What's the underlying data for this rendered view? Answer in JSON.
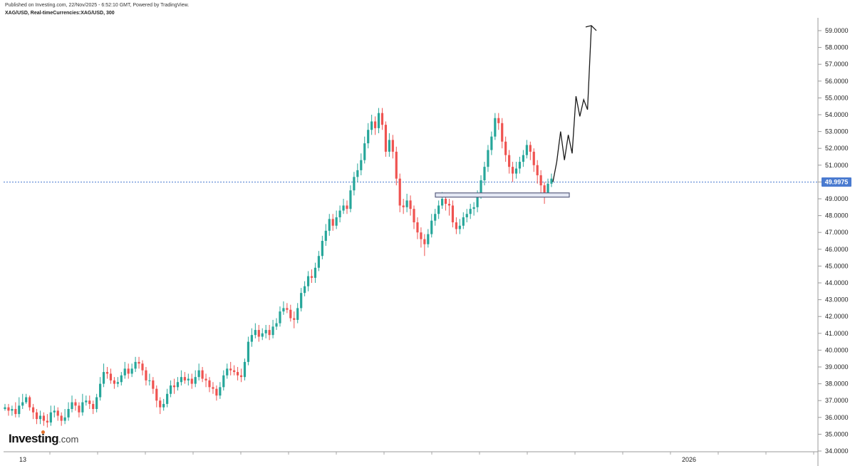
{
  "header": {
    "published": "Published on Investing.com, 22/Nov/2025 - 6:52:10 GMT, Powered by TradingView.",
    "symbol": "XAG/USD, Real-timeCurrencies:XAG/USD, 300"
  },
  "logo": {
    "brand": "Investing",
    "suffix": ".com"
  },
  "current_price": "49.9975",
  "colors": {
    "up": "#26a69a",
    "down": "#ef5350",
    "price_line": "#4a7bd0",
    "support_fill": "#e4e8f4"
  },
  "chart_data": {
    "type": "candlestick",
    "title": "",
    "ylim": [
      33.6,
      59.9
    ],
    "y_ticks": [
      "34.0000",
      "35.0000",
      "36.0000",
      "37.0000",
      "38.0000",
      "39.0000",
      "40.0000",
      "41.0000",
      "42.0000",
      "43.0000",
      "44.0000",
      "45.0000",
      "46.0000",
      "47.0000",
      "48.0000",
      "49.0000",
      "50.0000",
      "51.0000",
      "52.0000",
      "53.0000",
      "54.0000",
      "55.0000",
      "56.0000",
      "57.0000",
      "58.0000",
      "59.0000"
    ],
    "x_tick_labels": [
      "13",
      "2026"
    ],
    "closes": [
      36.6,
      36.4,
      36.5,
      36.2,
      36.7,
      36.9,
      37.2,
      36.6,
      36.3,
      35.9,
      36.1,
      35.8,
      35.7,
      36.3,
      36.4,
      36.1,
      35.8,
      36.0,
      36.5,
      36.9,
      36.7,
      36.3,
      36.9,
      37.0,
      36.8,
      36.5,
      37.2,
      38.0,
      38.7,
      38.6,
      38.2,
      38.0,
      38.1,
      38.5,
      38.9,
      38.6,
      38.9,
      39.3,
      39.2,
      38.8,
      38.2,
      38.2,
      37.7,
      37.0,
      36.6,
      36.8,
      37.4,
      37.9,
      37.8,
      38.1,
      38.4,
      38.2,
      38.3,
      38.0,
      38.4,
      38.8,
      38.3,
      38.2,
      37.8,
      37.7,
      37.3,
      37.8,
      38.5,
      38.9,
      38.8,
      38.7,
      38.5,
      38.4,
      39.3,
      40.5,
      40.9,
      41.2,
      40.8,
      41.0,
      41.2,
      40.9,
      41.4,
      41.6,
      42.3,
      42.5,
      42.4,
      41.9,
      41.8,
      42.5,
      43.4,
      43.8,
      44.4,
      44.3,
      44.9,
      45.6,
      46.5,
      47.1,
      47.8,
      47.4,
      47.9,
      48.3,
      48.6,
      48.4,
      49.5,
      50.3,
      50.7,
      51.3,
      52.3,
      53.1,
      53.6,
      53.2,
      54.1,
      53.4,
      51.8,
      52.5,
      51.8,
      50.2,
      48.6,
      48.5,
      48.9,
      48.4,
      47.6,
      47.0,
      46.6,
      46.3,
      46.9,
      47.7,
      48.1,
      48.6,
      49.0,
      48.7,
      48.6,
      47.6,
      47.2,
      47.4,
      47.9,
      48.1,
      48.4,
      48.5,
      49.2,
      50.1,
      50.9,
      51.9,
      52.7,
      53.8,
      53.5,
      52.4,
      51.6,
      50.9,
      50.5,
      50.8,
      51.2,
      51.6,
      52.2,
      51.8,
      51.0,
      50.4,
      49.8,
      49.3,
      49.9,
      50.2
    ],
    "highs": [
      36.8,
      36.8,
      36.7,
      36.9,
      37.2,
      37.4,
      37.4,
      37.3,
      36.8,
      36.5,
      36.4,
      36.3,
      36.2,
      36.7,
      36.7,
      36.6,
      36.3,
      36.5,
      36.9,
      37.3,
      37.1,
      36.9,
      37.4,
      37.3,
      37.3,
      37.0,
      37.4,
      38.4,
      39.2,
      39.0,
      38.9,
      38.4,
      38.4,
      38.7,
      39.3,
      39.2,
      39.2,
      39.6,
      39.6,
      39.4,
      39.0,
      38.6,
      38.4,
      37.9,
      37.2,
      37.1,
      37.7,
      38.2,
      38.3,
      38.4,
      38.8,
      38.7,
      38.6,
      38.6,
      38.8,
      39.2,
      39.0,
      38.6,
      38.4,
      38.1,
      37.9,
      38.1,
      38.8,
      39.2,
      39.3,
      39.1,
      39.0,
      38.9,
      39.5,
      40.8,
      41.3,
      41.6,
      41.5,
      41.3,
      41.5,
      41.5,
      41.8,
      41.9,
      42.6,
      42.9,
      42.8,
      42.7,
      42.3,
      42.8,
      43.7,
      44.1,
      44.7,
      44.8,
      45.2,
      45.9,
      46.8,
      47.5,
      48.1,
      48.1,
      48.3,
      48.6,
      49.0,
      48.9,
      49.8,
      50.6,
      51.1,
      51.7,
      52.7,
      53.5,
      54.0,
      53.9,
      54.4,
      54.4,
      53.6,
      52.9,
      52.8,
      52.1,
      50.5,
      49.0,
      49.3,
      49.2,
      48.6,
      47.9,
      47.3,
      46.9,
      47.2,
      48.1,
      48.4,
      48.9,
      49.4,
      49.3,
      49.0,
      48.9,
      47.9,
      47.8,
      48.2,
      48.4,
      48.7,
      48.8,
      49.5,
      50.4,
      51.2,
      52.2,
      53.0,
      54.1,
      54.1,
      53.8,
      52.7,
      51.9,
      51.2,
      51.2,
      51.5,
      51.9,
      52.5,
      52.4,
      52.0,
      51.3,
      50.7,
      50.0,
      50.2,
      50.5
    ],
    "lows": [
      36.4,
      36.1,
      36.1,
      36.0,
      36.0,
      36.5,
      36.8,
      36.4,
      35.9,
      35.6,
      35.6,
      35.5,
      35.4,
      35.5,
      36.0,
      35.8,
      35.5,
      35.6,
      35.8,
      36.3,
      36.4,
      36.0,
      36.1,
      36.7,
      36.5,
      36.2,
      36.3,
      37.0,
      37.8,
      38.3,
      38.0,
      37.7,
      37.8,
      37.9,
      38.3,
      38.3,
      38.4,
      38.7,
      38.9,
      38.5,
      37.9,
      37.9,
      37.4,
      36.6,
      36.2,
      36.4,
      36.6,
      37.2,
      37.4,
      37.6,
      37.9,
      38.0,
      37.9,
      37.7,
      37.8,
      38.2,
      38.1,
      37.8,
      37.5,
      37.4,
      37.0,
      37.1,
      37.6,
      38.3,
      38.5,
      38.5,
      38.2,
      38.1,
      38.2,
      39.1,
      40.2,
      40.7,
      40.5,
      40.6,
      40.7,
      40.6,
      40.7,
      41.2,
      41.4,
      42.1,
      42.2,
      41.7,
      41.3,
      41.6,
      42.3,
      43.2,
      43.5,
      44.0,
      44.0,
      44.7,
      45.4,
      46.2,
      46.8,
      47.1,
      47.2,
      47.6,
      48.1,
      48.1,
      48.2,
      49.2,
      50.0,
      50.4,
      51.1,
      52.0,
      52.8,
      52.8,
      52.9,
      53.1,
      51.5,
      51.5,
      51.4,
      49.8,
      48.2,
      48.1,
      48.2,
      48.0,
      47.2,
      46.6,
      46.1,
      45.6,
      46.1,
      46.7,
      47.4,
      47.8,
      48.4,
      48.3,
      48.0,
      47.3,
      46.9,
      46.9,
      47.2,
      47.6,
      47.8,
      48.0,
      48.2,
      49.0,
      49.8,
      50.6,
      51.6,
      52.5,
      53.1,
      52.0,
      51.2,
      50.5,
      50.0,
      50.2,
      50.5,
      50.9,
      51.4,
      51.3,
      50.6,
      49.9,
      49.3,
      48.7,
      49.1,
      49.7
    ],
    "support_zone": [
      49.1,
      49.35
    ],
    "projection": [
      50.0,
      51.2,
      53.0,
      51.3,
      52.8,
      51.7,
      55.1,
      53.9,
      54.9,
      54.3,
      59.3
    ]
  }
}
